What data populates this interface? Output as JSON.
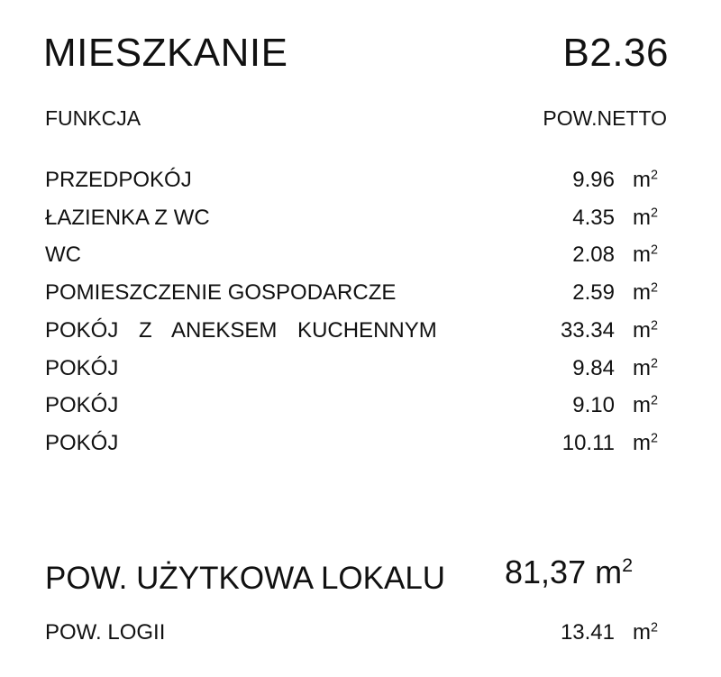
{
  "header": {
    "title": "MIESZKANIE",
    "unit_code": "B2.36"
  },
  "columns": {
    "function": "FUNKCJA",
    "net_area": "POW.NETTO"
  },
  "rooms": [
    {
      "name": "PRZEDPOKÓJ",
      "area": "9.96"
    },
    {
      "name": "ŁAZIENKA Z WC",
      "area": "4.35"
    },
    {
      "name": "WC",
      "area": "2.08"
    },
    {
      "name": "POMIESZCZENIE GOSPODARCZE",
      "area": "2.59"
    },
    {
      "name": "POKÓJ Z ANEKSEM KUCHENNYM",
      "area": "33.34"
    },
    {
      "name": "POKÓJ",
      "area": "9.84"
    },
    {
      "name": "POKÓJ",
      "area": "9.10"
    },
    {
      "name": "POKÓJ",
      "area": "10.11"
    }
  ],
  "unit_symbol": "m",
  "unit_exponent": "2",
  "totals": {
    "usable_label": "POW. UŻYTKOWA LOKALU",
    "usable_value": "81,37",
    "loggia_label": "POW. LOGII",
    "loggia_value": "13.41"
  }
}
